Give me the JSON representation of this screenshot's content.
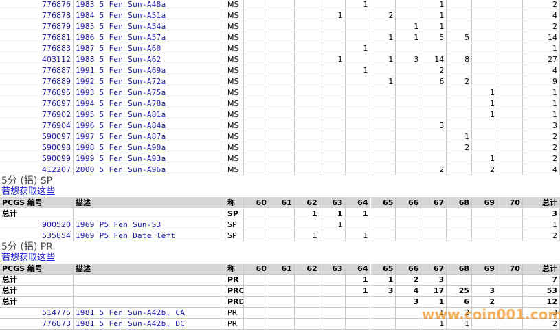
{
  "sections": [
    {
      "rows": [
        {
          "id": "776876",
          "desc": "1983 5 Fen Sun-A48a",
          "des": "MS",
          "grades": [
            null,
            null,
            null,
            null,
            1,
            null,
            null,
            1,
            null,
            null,
            null
          ],
          "total": 2
        },
        {
          "id": "776878",
          "desc": "1984 5 Fen Sun-A51a",
          "des": "MS",
          "grades": [
            null,
            null,
            null,
            1,
            null,
            2,
            null,
            1,
            null,
            null,
            null
          ],
          "total": 4
        },
        {
          "id": "776879",
          "desc": "1985 5 Fen Sun-A54a",
          "des": "MS",
          "grades": [
            null,
            null,
            null,
            null,
            null,
            null,
            1,
            1,
            null,
            null,
            null
          ],
          "total": 2
        },
        {
          "id": "776881",
          "desc": "1986 5 Fen Sun-A57a",
          "des": "MS",
          "grades": [
            null,
            null,
            null,
            null,
            null,
            1,
            1,
            5,
            5,
            null,
            null
          ],
          "total": 14
        },
        {
          "id": "776883",
          "desc": "1987 5 Fen Sun-A60",
          "des": "MS",
          "grades": [
            null,
            null,
            null,
            null,
            1,
            null,
            null,
            null,
            null,
            null,
            null
          ],
          "total": 1
        },
        {
          "id": "403112",
          "desc": "1988 5 Fen Sun-A62",
          "des": "MS",
          "grades": [
            null,
            null,
            null,
            1,
            null,
            1,
            3,
            14,
            8,
            null,
            null
          ],
          "total": 27
        },
        {
          "id": "776887",
          "desc": "1991 5 Fen Sun-A69a",
          "des": "MS",
          "grades": [
            null,
            null,
            null,
            null,
            1,
            null,
            null,
            2,
            null,
            null,
            null
          ],
          "total": 4
        },
        {
          "id": "776889",
          "desc": "1992 5 Fen Sun-A72a",
          "des": "MS",
          "grades": [
            null,
            null,
            null,
            null,
            null,
            1,
            null,
            6,
            2,
            null,
            null
          ],
          "total": 9
        },
        {
          "id": "776895",
          "desc": "1993 5 Fen Sun-A75a",
          "des": "MS",
          "grades": [
            null,
            null,
            null,
            null,
            null,
            null,
            null,
            null,
            null,
            1,
            null
          ],
          "total": 1
        },
        {
          "id": "776897",
          "desc": "1994 5 Fen Sun-A78a",
          "des": "MS",
          "grades": [
            null,
            null,
            null,
            null,
            null,
            null,
            null,
            null,
            null,
            1,
            null
          ],
          "total": 1
        },
        {
          "id": "776902",
          "desc": "1995 5 Fen Sun-A81a",
          "des": "MS",
          "grades": [
            null,
            null,
            null,
            null,
            null,
            null,
            null,
            null,
            null,
            1,
            null
          ],
          "total": 1
        },
        {
          "id": "776904",
          "desc": "1996 5 Fen Sun-A84a",
          "des": "MS",
          "grades": [
            null,
            null,
            null,
            null,
            null,
            null,
            null,
            3,
            null,
            null,
            null
          ],
          "total": 3
        },
        {
          "id": "590097",
          "desc": "1997 5 Fen Sun-A87a",
          "des": "MS",
          "grades": [
            null,
            null,
            null,
            null,
            null,
            null,
            null,
            null,
            1,
            null,
            null
          ],
          "total": 2
        },
        {
          "id": "590098",
          "desc": "1998 5 Fen Sun-A90a",
          "des": "MS",
          "grades": [
            null,
            null,
            null,
            null,
            null,
            null,
            null,
            null,
            2,
            null,
            null
          ],
          "total": 2
        },
        {
          "id": "590099",
          "desc": "1999 5 Fen Sun-A93a",
          "des": "MS",
          "grades": [
            null,
            null,
            null,
            null,
            null,
            null,
            null,
            null,
            null,
            1,
            null
          ],
          "total": 2
        },
        {
          "id": "412207",
          "desc": "2000 5 Fen Sun-A96a",
          "des": "MS",
          "grades": [
            null,
            null,
            null,
            null,
            null,
            null,
            null,
            2,
            null,
            2,
            null
          ],
          "total": 4
        }
      ]
    },
    {
      "title": "5分 (铝) SP",
      "link": "若想获取这些",
      "header": [
        "PCGS 编号",
        "描述",
        "称",
        "60",
        "61",
        "62",
        "63",
        "64",
        "65",
        "66",
        "67",
        "68",
        "69",
        "70",
        "总计"
      ],
      "totals": [
        {
          "label": "总计",
          "des": "SP",
          "grades": [
            null,
            null,
            1,
            1,
            1,
            null,
            null,
            null,
            null,
            null,
            null
          ],
          "total": 3
        }
      ],
      "rows": [
        {
          "id": "900520",
          "desc": "1969 P5 Fen Sun-S3",
          "des": "SP",
          "grades": [
            null,
            null,
            null,
            1,
            null,
            null,
            null,
            null,
            null,
            null,
            null
          ],
          "total": 1
        },
        {
          "id": "535854",
          "desc": "1969 P5 Fen Date left",
          "des": "SP",
          "grades": [
            null,
            null,
            1,
            null,
            1,
            null,
            null,
            null,
            null,
            null,
            null
          ],
          "total": 2
        }
      ]
    },
    {
      "title": "5分 (铝) PR",
      "link": "若想获取这些",
      "header": [
        "PCGS 编号",
        "描述",
        "称",
        "60",
        "61",
        "62",
        "63",
        "64",
        "65",
        "66",
        "67",
        "68",
        "69",
        "70",
        "总计"
      ],
      "totals": [
        {
          "label": "总计",
          "des": "PR",
          "grades": [
            null,
            null,
            null,
            null,
            1,
            1,
            2,
            3,
            null,
            null,
            null
          ],
          "total": 7
        },
        {
          "label": "总计",
          "des": "PRC",
          "grades": [
            null,
            null,
            null,
            null,
            1,
            3,
            4,
            17,
            25,
            3,
            null
          ],
          "total": 53
        },
        {
          "label": "总计",
          "des": "PRD",
          "grades": [
            null,
            null,
            null,
            null,
            null,
            null,
            3,
            1,
            6,
            2,
            null
          ],
          "total": 12
        }
      ],
      "rows": [
        {
          "id": "514775",
          "desc": "1981 5 Fen Sun-A42b, CA",
          "des": "PR",
          "grades": [
            null,
            null,
            null,
            null,
            null,
            null,
            null,
            1,
            2,
            null,
            null
          ],
          "total": 3
        },
        {
          "id": "776873",
          "desc": "1981 5 Fen Sun-A42b, DC",
          "des": "PR",
          "grades": [
            null,
            null,
            null,
            null,
            null,
            null,
            null,
            1,
            1,
            null,
            null
          ],
          "total": 2
        }
      ]
    }
  ],
  "watermark": "www.coin001.com"
}
